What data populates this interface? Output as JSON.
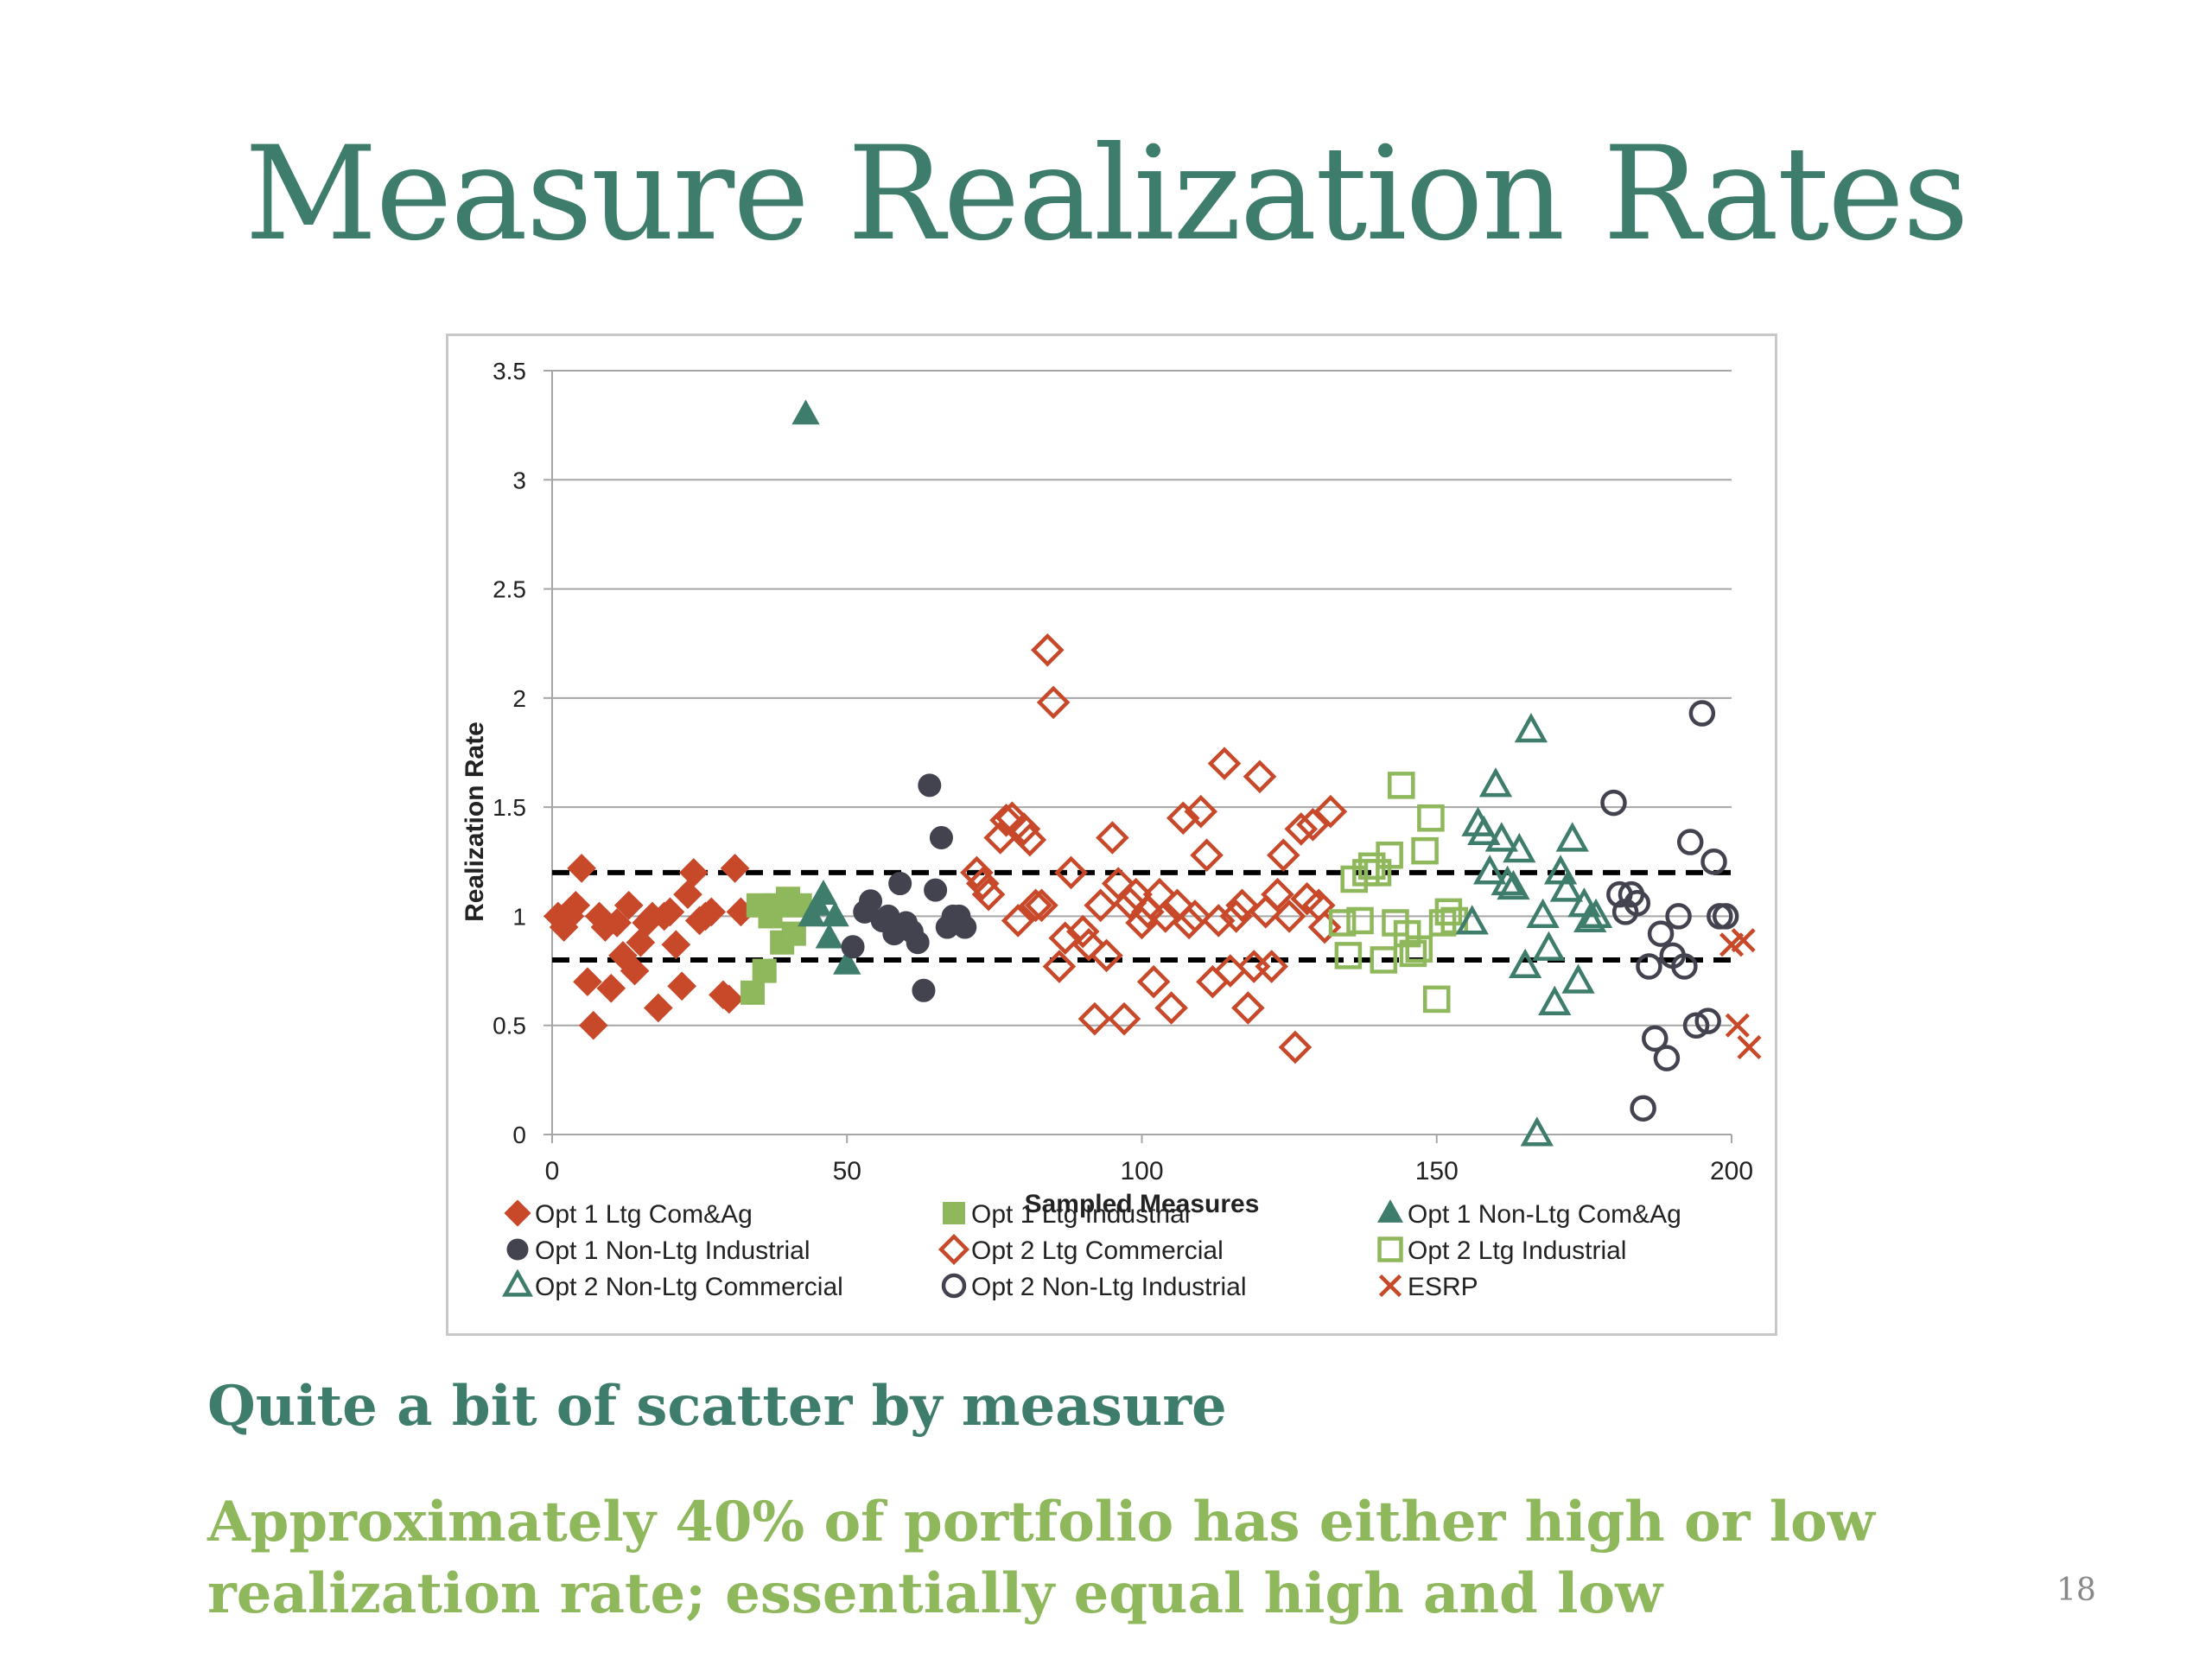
{
  "slide": {
    "title": "Measure Realization Rates",
    "subtitle": "Quite a bit of scatter by measure",
    "body": "Approximately 40% of portfolio has either high or low realization rate; essentially equal high and low",
    "page_number": "18"
  },
  "colors": {
    "title": "#3e7d6c",
    "subtitle": "#3e7d6c",
    "body": "#8fb75b",
    "orange": "#c8492a",
    "green": "#8fb75b",
    "teal": "#3e7d6c",
    "dark": "#434350"
  },
  "chart_data": {
    "type": "scatter",
    "xlabel": "Sampled Measures",
    "ylabel": "Realization Rate",
    "xlim": [
      0,
      200
    ],
    "ylim": [
      0,
      3.5
    ],
    "x_ticks": [
      0,
      50,
      100,
      150,
      200
    ],
    "y_ticks": [
      0,
      0.5,
      1,
      1.5,
      2,
      2.5,
      3,
      3.5
    ],
    "x_tick_labels": [
      "0",
      "50",
      "100",
      "150",
      "200"
    ],
    "y_tick_labels": [
      "0",
      "0.5",
      "1",
      "1.5",
      "2",
      "2.5",
      "3",
      "3.5"
    ],
    "grid": "horizontal",
    "legend_position": "bottom",
    "reference_lines": [
      1.2,
      0.8
    ],
    "series": [
      {
        "name": "Opt 1 Ltg Com&Ag",
        "marker": "diamond-filled",
        "color": "#c8492a",
        "points": [
          [
            1,
            1.0
          ],
          [
            2,
            0.95
          ],
          [
            3,
            1.0
          ],
          [
            4,
            1.05
          ],
          [
            5,
            1.22
          ],
          [
            6,
            0.7
          ],
          [
            7,
            0.5
          ],
          [
            8,
            1.0
          ],
          [
            9,
            0.95
          ],
          [
            10,
            0.67
          ],
          [
            11,
            0.97
          ],
          [
            12,
            0.82
          ],
          [
            13,
            1.05
          ],
          [
            14,
            0.75
          ],
          [
            15,
            0.88
          ],
          [
            16,
            0.97
          ],
          [
            17,
            1.0
          ],
          [
            18,
            0.58
          ],
          [
            19,
            1.0
          ],
          [
            20,
            1.02
          ],
          [
            21,
            0.87
          ],
          [
            22,
            0.68
          ],
          [
            23,
            1.1
          ],
          [
            24,
            1.2
          ],
          [
            25,
            0.98
          ],
          [
            26,
            1.0
          ],
          [
            27,
            1.02
          ],
          [
            29,
            0.64
          ],
          [
            30,
            0.62
          ],
          [
            31,
            1.22
          ],
          [
            32,
            1.02
          ]
        ]
      },
      {
        "name": "Opt 1 Ltg Industrial",
        "marker": "square-filled",
        "color": "#8fb75b",
        "points": [
          [
            34,
            0.65
          ],
          [
            35,
            1.05
          ],
          [
            36,
            0.75
          ],
          [
            37,
            1.0
          ],
          [
            38,
            1.05
          ],
          [
            39,
            0.88
          ],
          [
            40,
            1.08
          ],
          [
            41,
            0.92
          ],
          [
            42,
            1.05
          ]
        ]
      },
      {
        "name": "Opt 1 Non-Ltg Com&Ag",
        "marker": "triangle-filled",
        "color": "#3e7d6c",
        "points": [
          [
            43,
            3.3
          ],
          [
            44,
            1.0
          ],
          [
            45,
            1.05
          ],
          [
            46,
            1.1
          ],
          [
            47,
            0.9
          ],
          [
            48,
            1.0
          ],
          [
            50,
            0.78
          ]
        ]
      },
      {
        "name": "Opt 1 Non-Ltg Industrial",
        "marker": "circle-filled",
        "color": "#434350",
        "points": [
          [
            51,
            0.86
          ],
          [
            53,
            1.02
          ],
          [
            54,
            1.07
          ],
          [
            56,
            0.98
          ],
          [
            57,
            1.0
          ],
          [
            58,
            0.92
          ],
          [
            59,
            1.15
          ],
          [
            60,
            0.97
          ],
          [
            61,
            0.93
          ],
          [
            62,
            0.88
          ],
          [
            63,
            0.66
          ],
          [
            64,
            1.6
          ],
          [
            65,
            1.12
          ],
          [
            66,
            1.36
          ],
          [
            67,
            0.95
          ],
          [
            68,
            1.0
          ],
          [
            69,
            1.0
          ],
          [
            70,
            0.95
          ]
        ]
      },
      {
        "name": "Opt 2 Ltg Commercial",
        "marker": "diamond-open",
        "color": "#c8492a",
        "points": [
          [
            72,
            1.2
          ],
          [
            73,
            1.15
          ],
          [
            74,
            1.1
          ],
          [
            76,
            1.36
          ],
          [
            77,
            1.44
          ],
          [
            78,
            1.45
          ],
          [
            79,
            0.98
          ],
          [
            80,
            1.4
          ],
          [
            81,
            1.35
          ],
          [
            82,
            1.05
          ],
          [
            83,
            1.05
          ],
          [
            84,
            2.22
          ],
          [
            85,
            1.98
          ],
          [
            86,
            0.77
          ],
          [
            87,
            0.9
          ],
          [
            88,
            1.2
          ],
          [
            90,
            0.93
          ],
          [
            91,
            0.87
          ],
          [
            92,
            0.53
          ],
          [
            93,
            1.05
          ],
          [
            94,
            0.82
          ],
          [
            95,
            1.36
          ],
          [
            96,
            1.15
          ],
          [
            97,
            0.53
          ],
          [
            98,
            1.06
          ],
          [
            99,
            1.1
          ],
          [
            100,
            0.97
          ],
          [
            101,
            1.02
          ],
          [
            102,
            0.7
          ],
          [
            103,
            1.1
          ],
          [
            104,
            1.0
          ],
          [
            105,
            0.58
          ],
          [
            106,
            1.05
          ],
          [
            107,
            1.45
          ],
          [
            108,
            0.97
          ],
          [
            109,
            1.0
          ],
          [
            110,
            1.48
          ],
          [
            111,
            1.28
          ],
          [
            112,
            0.7
          ],
          [
            113,
            0.98
          ],
          [
            114,
            1.7
          ],
          [
            115,
            0.75
          ],
          [
            116,
            1.0
          ],
          [
            117,
            1.05
          ],
          [
            118,
            0.58
          ],
          [
            119,
            0.77
          ],
          [
            120,
            1.64
          ],
          [
            121,
            1.02
          ],
          [
            122,
            0.77
          ],
          [
            123,
            1.1
          ],
          [
            124,
            1.28
          ],
          [
            125,
            1.0
          ],
          [
            126,
            0.4
          ],
          [
            127,
            1.4
          ],
          [
            128,
            1.08
          ],
          [
            129,
            1.42
          ],
          [
            130,
            1.05
          ],
          [
            131,
            0.95
          ],
          [
            132,
            1.48
          ]
        ]
      },
      {
        "name": "Opt 2 Ltg Industrial",
        "marker": "square-open",
        "color": "#8fb75b",
        "points": [
          [
            134,
            0.97
          ],
          [
            135,
            0.82
          ],
          [
            136,
            1.17
          ],
          [
            137,
            0.98
          ],
          [
            138,
            1.2
          ],
          [
            139,
            1.23
          ],
          [
            140,
            1.2
          ],
          [
            141,
            0.8
          ],
          [
            142,
            1.28
          ],
          [
            143,
            0.97
          ],
          [
            144,
            1.6
          ],
          [
            145,
            0.92
          ],
          [
            146,
            0.83
          ],
          [
            147,
            0.85
          ],
          [
            148,
            1.3
          ],
          [
            149,
            1.45
          ],
          [
            150,
            0.62
          ],
          [
            151,
            0.97
          ],
          [
            152,
            1.02
          ],
          [
            153,
            0.98
          ]
        ]
      },
      {
        "name": "Opt 2 Non-Ltg Commercial",
        "marker": "triangle-open",
        "color": "#3e7d6c",
        "points": [
          [
            156,
            0.97
          ],
          [
            157,
            1.42
          ],
          [
            158,
            1.38
          ],
          [
            159,
            1.2
          ],
          [
            160,
            1.6
          ],
          [
            161,
            1.35
          ],
          [
            162,
            1.15
          ],
          [
            163,
            1.13
          ],
          [
            164,
            1.3
          ],
          [
            165,
            0.77
          ],
          [
            166,
            1.85
          ],
          [
            167,
            0.0
          ],
          [
            168,
            1.0
          ],
          [
            169,
            0.85
          ],
          [
            170,
            0.6
          ],
          [
            171,
            1.2
          ],
          [
            172,
            1.12
          ],
          [
            173,
            1.35
          ],
          [
            174,
            0.7
          ],
          [
            175,
            1.05
          ],
          [
            176,
            0.98
          ],
          [
            177,
            1.0
          ]
        ]
      },
      {
        "name": "Opt 2 Non-Ltg Industrial",
        "marker": "circle-open",
        "color": "#434350",
        "points": [
          [
            180,
            1.52
          ],
          [
            181,
            1.1
          ],
          [
            182,
            1.02
          ],
          [
            183,
            1.1
          ],
          [
            184,
            1.06
          ],
          [
            185,
            0.12
          ],
          [
            186,
            0.77
          ],
          [
            187,
            0.44
          ],
          [
            188,
            0.92
          ],
          [
            189,
            0.35
          ],
          [
            190,
            0.82
          ],
          [
            191,
            1.0
          ],
          [
            192,
            0.77
          ],
          [
            193,
            1.34
          ],
          [
            194,
            0.5
          ],
          [
            195,
            1.93
          ],
          [
            196,
            0.52
          ],
          [
            197,
            1.25
          ],
          [
            198,
            1.0
          ],
          [
            199,
            1.0
          ]
        ]
      },
      {
        "name": "ESRP",
        "marker": "x",
        "color": "#c8492a",
        "points": [
          [
            200,
            0.87
          ],
          [
            201,
            0.5
          ],
          [
            202,
            0.89
          ],
          [
            203,
            0.4
          ]
        ]
      }
    ]
  }
}
